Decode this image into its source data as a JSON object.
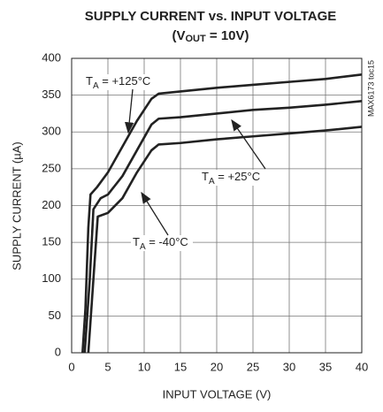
{
  "chart_data": {
    "type": "line",
    "title": "SUPPLY CURRENT vs. INPUT VOLTAGE",
    "subtitle": [
      "(V",
      "OUT",
      " = 10V)"
    ],
    "xlabel": "INPUT VOLTAGE (V)",
    "ylabel": "SUPPLY CURRENT (µA)",
    "side_note": "MAX6173 toc15",
    "xlim": [
      0,
      40
    ],
    "xticks": [
      0,
      5,
      10,
      15,
      20,
      25,
      30,
      35,
      40
    ],
    "ylim": [
      0,
      400
    ],
    "yticks": [
      0,
      50,
      100,
      150,
      200,
      250,
      300,
      350,
      400
    ],
    "grid": true,
    "series": [
      {
        "color": "#222222",
        "x": [
          1.5,
          1.9,
          2.3,
          2.6,
          3.5,
          5,
          7,
          9,
          11,
          12,
          15,
          20,
          25,
          30,
          35,
          40
        ],
        "values": [
          0,
          60,
          170,
          215,
          225,
          245,
          280,
          315,
          345,
          352,
          355,
          360,
          364,
          368,
          372,
          378
        ]
      },
      {
        "color": "#222222",
        "x": [
          1.8,
          2.5,
          3,
          4,
          5,
          7,
          9,
          11,
          12,
          15,
          20,
          25,
          30,
          35,
          40
        ],
        "values": [
          0,
          100,
          195,
          210,
          215,
          240,
          275,
          310,
          318,
          320,
          325,
          330,
          333,
          337,
          342
        ]
      },
      {
        "color": "#222222",
        "x": [
          2.3,
          3,
          3.6,
          5,
          7,
          9,
          11,
          12,
          15,
          20,
          25,
          30,
          35,
          40
        ],
        "values": [
          0,
          100,
          185,
          190,
          210,
          245,
          275,
          283,
          285,
          290,
          294,
          298,
          302,
          307
        ]
      }
    ],
    "annotations": [
      {
        "text": [
          "T",
          "A",
          " = +125°C"
        ]
      },
      {
        "text": [
          "T",
          "A",
          " = +25°C"
        ]
      },
      {
        "text": [
          "T",
          "A",
          " = -40°C"
        ]
      }
    ]
  }
}
